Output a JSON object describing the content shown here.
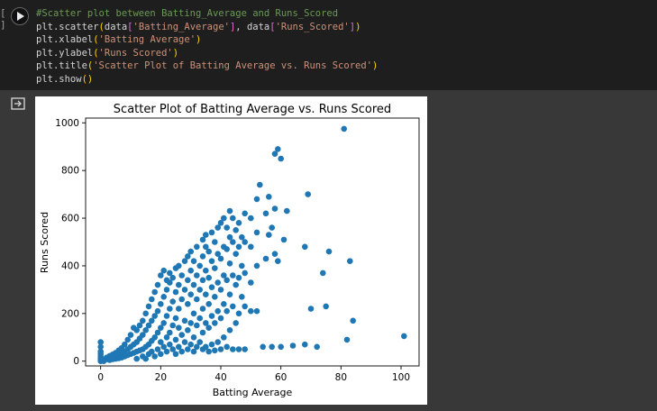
{
  "cell": {
    "execution_count": "[ ]",
    "code_lines": [
      {
        "kind": "comment",
        "text": "#Scatter plot between Batting_Average and Runs_Scored"
      },
      {
        "kind": "scatter",
        "pre": "plt.scatter",
        "a": "data",
        "s1": "'Batting_Average'",
        "mid": ", data",
        "s2": "'Runs_Scored'"
      },
      {
        "kind": "call",
        "pre": "plt.xlabel",
        "s": "'Batting Average'"
      },
      {
        "kind": "call",
        "pre": "plt.ylabel",
        "s": "'Runs Scored'"
      },
      {
        "kind": "call",
        "pre": "plt.title",
        "s": "'Scatter Plot of Batting Average vs. Runs Scored'"
      },
      {
        "kind": "show",
        "pre": "plt.show"
      }
    ]
  },
  "icons": {
    "run": "play-circle-icon",
    "output": "output-arrow-icon"
  },
  "chart_data": {
    "type": "scatter",
    "title": "Scatter Plot of Batting Average vs. Runs Scored",
    "xlabel": "Batting Average",
    "ylabel": "Runs Scored",
    "xlim": [
      -5,
      106
    ],
    "ylim": [
      -20,
      1020
    ],
    "xticks": [
      0,
      20,
      40,
      60,
      80,
      100
    ],
    "yticks": [
      0,
      200,
      400,
      600,
      800,
      1000
    ],
    "point_color": "#1f77b4",
    "grid": false,
    "points": [
      [
        0,
        0
      ],
      [
        0,
        5
      ],
      [
        0,
        10
      ],
      [
        0,
        20
      ],
      [
        0,
        30
      ],
      [
        0,
        40
      ],
      [
        0,
        60
      ],
      [
        0,
        80
      ],
      [
        1,
        0
      ],
      [
        1,
        5
      ],
      [
        2,
        8
      ],
      [
        2,
        15
      ],
      [
        3,
        5
      ],
      [
        3,
        12
      ],
      [
        3,
        22
      ],
      [
        4,
        8
      ],
      [
        4,
        18
      ],
      [
        4,
        28
      ],
      [
        5,
        10
      ],
      [
        5,
        20
      ],
      [
        5,
        35
      ],
      [
        6,
        12
      ],
      [
        6,
        25
      ],
      [
        6,
        45
      ],
      [
        7,
        15
      ],
      [
        7,
        30
      ],
      [
        7,
        55
      ],
      [
        8,
        20
      ],
      [
        8,
        40
      ],
      [
        8,
        70
      ],
      [
        9,
        25
      ],
      [
        9,
        50
      ],
      [
        9,
        90
      ],
      [
        10,
        30
      ],
      [
        10,
        60
      ],
      [
        10,
        110
      ],
      [
        11,
        35
      ],
      [
        11,
        70
      ],
      [
        11,
        140
      ],
      [
        12,
        10
      ],
      [
        12,
        40
      ],
      [
        12,
        80
      ],
      [
        12,
        130
      ],
      [
        13,
        45
      ],
      [
        13,
        95
      ],
      [
        13,
        150
      ],
      [
        14,
        20
      ],
      [
        14,
        50
      ],
      [
        14,
        110
      ],
      [
        14,
        170
      ],
      [
        15,
        10
      ],
      [
        15,
        60
      ],
      [
        15,
        130
      ],
      [
        15,
        200
      ],
      [
        16,
        30
      ],
      [
        16,
        70
      ],
      [
        16,
        150
      ],
      [
        16,
        230
      ],
      [
        17,
        40
      ],
      [
        17,
        85
      ],
      [
        17,
        170
      ],
      [
        17,
        260
      ],
      [
        18,
        20
      ],
      [
        18,
        100
      ],
      [
        18,
        190
      ],
      [
        18,
        290
      ],
      [
        19,
        50
      ],
      [
        19,
        120
      ],
      [
        19,
        210
      ],
      [
        19,
        320
      ],
      [
        20,
        30
      ],
      [
        20,
        80
      ],
      [
        20,
        140
      ],
      [
        20,
        240
      ],
      [
        20,
        360
      ],
      [
        21,
        60
      ],
      [
        21,
        160
      ],
      [
        21,
        270
      ],
      [
        21,
        380
      ],
      [
        22,
        40
      ],
      [
        22,
        100
      ],
      [
        22,
        190
      ],
      [
        22,
        300
      ],
      [
        22,
        340
      ],
      [
        23,
        70
      ],
      [
        23,
        120
      ],
      [
        23,
        220
      ],
      [
        23,
        330
      ],
      [
        23,
        370
      ],
      [
        24,
        50
      ],
      [
        24,
        150
      ],
      [
        24,
        250
      ],
      [
        24,
        350
      ],
      [
        25,
        30
      ],
      [
        25,
        90
      ],
      [
        25,
        180
      ],
      [
        25,
        290
      ],
      [
        25,
        390
      ],
      [
        26,
        60
      ],
      [
        26,
        140
      ],
      [
        26,
        220
      ],
      [
        26,
        320
      ],
      [
        26,
        400
      ],
      [
        27,
        40
      ],
      [
        27,
        110
      ],
      [
        27,
        260
      ],
      [
        27,
        360
      ],
      [
        28,
        80
      ],
      [
        28,
        170
      ],
      [
        28,
        300
      ],
      [
        28,
        420
      ],
      [
        29,
        50
      ],
      [
        29,
        130
      ],
      [
        29,
        240
      ],
      [
        29,
        340
      ],
      [
        29,
        440
      ],
      [
        30,
        70
      ],
      [
        30,
        160
      ],
      [
        30,
        280
      ],
      [
        30,
        380
      ],
      [
        30,
        460
      ],
      [
        31,
        40
      ],
      [
        31,
        100
      ],
      [
        31,
        200
      ],
      [
        31,
        320
      ],
      [
        31,
        420
      ],
      [
        32,
        60
      ],
      [
        32,
        150
      ],
      [
        32,
        260
      ],
      [
        32,
        360
      ],
      [
        32,
        480
      ],
      [
        33,
        80
      ],
      [
        33,
        180
      ],
      [
        33,
        300
      ],
      [
        33,
        400
      ],
      [
        34,
        50
      ],
      [
        34,
        120
      ],
      [
        34,
        220
      ],
      [
        34,
        340
      ],
      [
        34,
        440
      ],
      [
        34,
        510
      ],
      [
        35,
        60
      ],
      [
        35,
        160
      ],
      [
        35,
        280
      ],
      [
        35,
        380
      ],
      [
        35,
        480
      ],
      [
        35,
        530
      ],
      [
        36,
        40
      ],
      [
        36,
        140
      ],
      [
        36,
        240
      ],
      [
        36,
        350
      ],
      [
        36,
        460
      ],
      [
        37,
        70
      ],
      [
        37,
        190
      ],
      [
        37,
        310
      ],
      [
        37,
        420
      ],
      [
        37,
        540
      ],
      [
        38,
        45
      ],
      [
        38,
        160
      ],
      [
        38,
        270
      ],
      [
        38,
        390
      ],
      [
        38,
        500
      ],
      [
        39,
        80
      ],
      [
        39,
        210
      ],
      [
        39,
        330
      ],
      [
        39,
        450
      ],
      [
        39,
        560
      ],
      [
        40,
        50
      ],
      [
        40,
        180
      ],
      [
        40,
        300
      ],
      [
        40,
        430
      ],
      [
        40,
        580
      ],
      [
        41,
        100
      ],
      [
        41,
        240
      ],
      [
        41,
        360
      ],
      [
        41,
        480
      ],
      [
        41,
        600
      ],
      [
        42,
        60
      ],
      [
        42,
        210
      ],
      [
        42,
        340
      ],
      [
        42,
        470
      ],
      [
        42,
        560
      ],
      [
        43,
        130
      ],
      [
        43,
        280
      ],
      [
        43,
        410
      ],
      [
        43,
        520
      ],
      [
        43,
        630
      ],
      [
        44,
        50
      ],
      [
        44,
        230
      ],
      [
        44,
        360
      ],
      [
        44,
        500
      ],
      [
        44,
        600
      ],
      [
        45,
        160
      ],
      [
        45,
        320
      ],
      [
        45,
        450
      ],
      [
        45,
        550
      ],
      [
        46,
        50
      ],
      [
        46,
        200
      ],
      [
        46,
        350
      ],
      [
        46,
        480
      ],
      [
        46,
        580
      ],
      [
        47,
        270
      ],
      [
        47,
        400
      ],
      [
        47,
        520
      ],
      [
        48,
        50
      ],
      [
        48,
        230
      ],
      [
        48,
        370
      ],
      [
        48,
        500
      ],
      [
        48,
        620
      ],
      [
        50,
        210
      ],
      [
        50,
        330
      ],
      [
        50,
        480
      ],
      [
        50,
        600
      ],
      [
        52,
        210
      ],
      [
        52,
        400
      ],
      [
        52,
        540
      ],
      [
        52,
        680
      ],
      [
        53,
        740
      ],
      [
        54,
        60
      ],
      [
        55,
        430
      ],
      [
        55,
        620
      ],
      [
        56,
        530
      ],
      [
        56,
        690
      ],
      [
        57,
        60
      ],
      [
        57,
        560
      ],
      [
        58,
        450
      ],
      [
        58,
        640
      ],
      [
        58,
        870
      ],
      [
        59,
        420
      ],
      [
        59,
        890
      ],
      [
        60,
        60
      ],
      [
        60,
        850
      ],
      [
        61,
        510
      ],
      [
        62,
        630
      ],
      [
        64,
        65
      ],
      [
        68,
        70
      ],
      [
        68,
        480
      ],
      [
        69,
        700
      ],
      [
        70,
        220
      ],
      [
        72,
        60
      ],
      [
        74,
        370
      ],
      [
        75,
        230
      ],
      [
        76,
        460
      ],
      [
        81,
        975
      ],
      [
        82,
        90
      ],
      [
        83,
        420
      ],
      [
        84,
        170
      ],
      [
        101,
        105
      ]
    ]
  }
}
